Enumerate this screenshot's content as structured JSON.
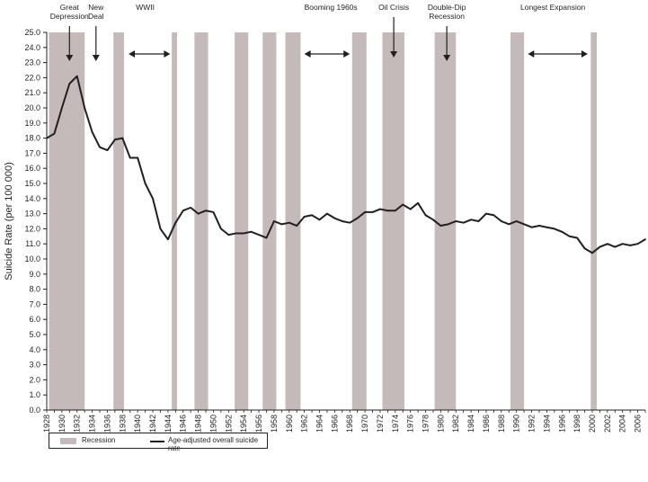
{
  "chart_data": {
    "type": "line",
    "ylabel": "Suicide Rate (per 100 000)",
    "xlabel": "",
    "ylim": [
      0,
      25
    ],
    "xlim": [
      1928,
      2007
    ],
    "y_ticks": [
      "0.0",
      "1.0",
      "2.0",
      "3.0",
      "4.0",
      "5.0",
      "6.0",
      "7.0",
      "8.0",
      "9.0",
      "10.0",
      "11.0",
      "12.0",
      "13.0",
      "14.0",
      "15.0",
      "16.0",
      "17.0",
      "18.0",
      "19.0",
      "20.0",
      "21.0",
      "22.0",
      "23.0",
      "24.0",
      "25.0"
    ],
    "x_ticks": [
      "1928",
      "1930",
      "1932",
      "1934",
      "1936",
      "1938",
      "1940",
      "1942",
      "1944",
      "1946",
      "1948",
      "1950",
      "1952",
      "1954",
      "1956",
      "1958",
      "1960",
      "1962",
      "1964",
      "1966",
      "1968",
      "1970",
      "1972",
      "1974",
      "1976",
      "1978",
      "1980",
      "1982",
      "1984",
      "1986",
      "1988",
      "1990",
      "1992",
      "1994",
      "1996",
      "1998",
      "2000",
      "2002",
      "2004",
      "2006"
    ],
    "series": [
      {
        "name": "Age-adjusted overall suicide rate",
        "x": [
          1928,
          1929,
          1930,
          1931,
          1932,
          1933,
          1934,
          1935,
          1936,
          1937,
          1938,
          1939,
          1940,
          1941,
          1942,
          1943,
          1944,
          1945,
          1946,
          1947,
          1948,
          1949,
          1950,
          1951,
          1952,
          1953,
          1954,
          1955,
          1956,
          1957,
          1958,
          1959,
          1960,
          1961,
          1962,
          1963,
          1964,
          1965,
          1966,
          1967,
          1968,
          1969,
          1970,
          1971,
          1972,
          1973,
          1974,
          1975,
          1976,
          1977,
          1978,
          1979,
          1980,
          1981,
          1982,
          1983,
          1984,
          1985,
          1986,
          1987,
          1988,
          1989,
          1990,
          1991,
          1992,
          1993,
          1994,
          1995,
          1996,
          1997,
          1998,
          1999,
          2000,
          2001,
          2002,
          2003,
          2004,
          2005,
          2006,
          2007
        ],
        "values": [
          18.0,
          18.3,
          20.0,
          21.6,
          22.1,
          20.0,
          18.4,
          17.4,
          17.2,
          17.9,
          18.0,
          16.7,
          16.7,
          15.0,
          14.0,
          12.0,
          11.3,
          12.4,
          13.2,
          13.4,
          13.0,
          13.2,
          13.1,
          12.0,
          11.6,
          11.7,
          11.7,
          11.8,
          11.6,
          11.4,
          12.5,
          12.3,
          12.4,
          12.2,
          12.8,
          12.9,
          12.6,
          13.0,
          12.7,
          12.5,
          12.4,
          12.7,
          13.1,
          13.1,
          13.3,
          13.2,
          13.2,
          13.6,
          13.3,
          13.7,
          12.9,
          12.6,
          12.2,
          12.3,
          12.5,
          12.4,
          12.6,
          12.5,
          13.0,
          12.9,
          12.5,
          12.3,
          12.5,
          12.3,
          12.1,
          12.2,
          12.1,
          12.0,
          11.8,
          11.5,
          11.4,
          10.7,
          10.4,
          10.8,
          11.0,
          10.8,
          11.0,
          10.9,
          11.0,
          11.3
        ]
      }
    ],
    "recessions": [
      [
        1928.3,
        1933.0
      ],
      [
        1936.8,
        1938.2
      ],
      [
        1944.5,
        1945.2
      ],
      [
        1947.5,
        1949.3
      ],
      [
        1952.8,
        1954.6
      ],
      [
        1956.5,
        1958.3
      ],
      [
        1959.5,
        1961.5
      ],
      [
        1968.3,
        1970.2
      ],
      [
        1972.3,
        1975.2
      ],
      [
        1979.2,
        1982.0
      ],
      [
        1989.2,
        1991.0
      ],
      [
        1999.8,
        2000.6
      ]
    ],
    "annotations": [
      {
        "label": "Great\nDepression",
        "x": 1931.0,
        "arrow": "down"
      },
      {
        "label": "New\nDeal",
        "x": 1934.5,
        "arrow": "down"
      },
      {
        "label": "WWII",
        "x": 1941.0,
        "arrow": "both",
        "from": 1938.8,
        "to": 1944.3
      },
      {
        "label": "Booming 1960s",
        "x": 1965.5,
        "arrow": "both",
        "from": 1962.0,
        "to": 1968.0
      },
      {
        "label": "Oil Crisis",
        "x": 1973.8,
        "arrow": "down"
      },
      {
        "label": "Double-Dip\nRecession",
        "x": 1980.8,
        "arrow": "down"
      },
      {
        "label": "Longest Expansion",
        "x": 1994.8,
        "arrow": "both",
        "from": 1991.5,
        "to": 1999.4
      }
    ],
    "legend": [
      {
        "label": "Recession",
        "color": "#c4bab9"
      },
      {
        "label": "Age-adjusted overall suicide rate",
        "color": "#231f20"
      }
    ],
    "legend_position": "bottom-left",
    "grid": false
  }
}
